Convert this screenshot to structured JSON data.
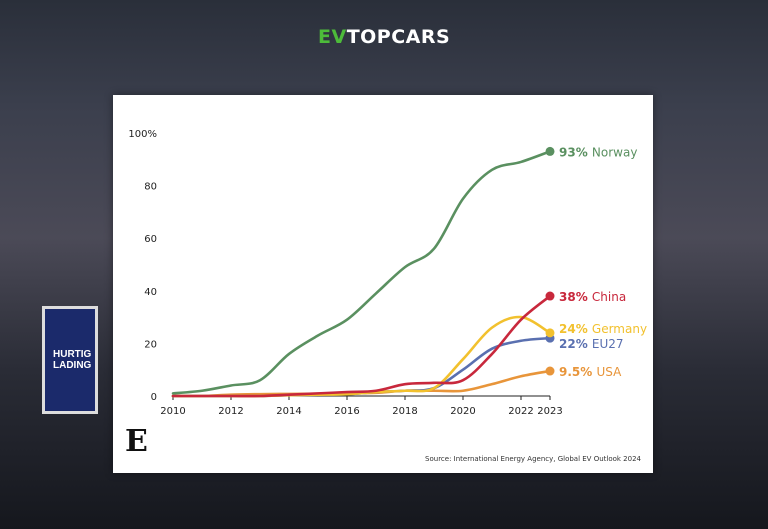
{
  "logo": {
    "ev": "EV",
    "text": "TOPCARS"
  },
  "sign": {
    "line1": "HURTIG",
    "line2": "LADING"
  },
  "brand_mark": "E",
  "source": "Source: International Energy Agency, Global EV Outlook 2024",
  "colors": {
    "Norway": "#5a9060",
    "China": "#c8283c",
    "Germany": "#f2c12e",
    "EU27": "#5a70b0",
    "USA": "#e8953a"
  },
  "chart_data": {
    "type": "line",
    "x": [
      2010,
      2011,
      2012,
      2013,
      2014,
      2015,
      2016,
      2017,
      2018,
      2019,
      2020,
      2021,
      2022,
      2023
    ],
    "xticks": [
      "2010",
      "2012",
      "2014",
      "2016",
      "2018",
      "2020",
      "2022",
      "2023"
    ],
    "yticks": [
      "100%",
      "80",
      "60",
      "40",
      "20",
      "0"
    ],
    "ylim": [
      0,
      100
    ],
    "xlim": [
      2010,
      2023
    ],
    "grid": false,
    "series": [
      {
        "name": "Norway",
        "label_value": "93%",
        "values": [
          1,
          2,
          4,
          6,
          16,
          23,
          29,
          39,
          49,
          56,
          75,
          86,
          89,
          93
        ]
      },
      {
        "name": "China",
        "label_value": "38%",
        "values": [
          0,
          0,
          0,
          0,
          0.5,
          1,
          1.5,
          2,
          4.5,
          5,
          6,
          16,
          29,
          38
        ]
      },
      {
        "name": "Germany",
        "label_value": "24%",
        "values": [
          0,
          0,
          0,
          0,
          0.3,
          0.5,
          0.7,
          1.5,
          2,
          3,
          14,
          26,
          30,
          24
        ]
      },
      {
        "name": "EU27",
        "label_value": "22%",
        "values": [
          0,
          0,
          0,
          0,
          0.3,
          0.5,
          0.7,
          1.5,
          2,
          3,
          10,
          18,
          21,
          22
        ]
      },
      {
        "name": "USA",
        "label_value": "9.5%",
        "values": [
          0,
          0,
          0.5,
          0.7,
          0.8,
          0.9,
          1,
          1.2,
          2,
          2,
          2,
          4.5,
          7.5,
          9.5
        ]
      }
    ]
  }
}
